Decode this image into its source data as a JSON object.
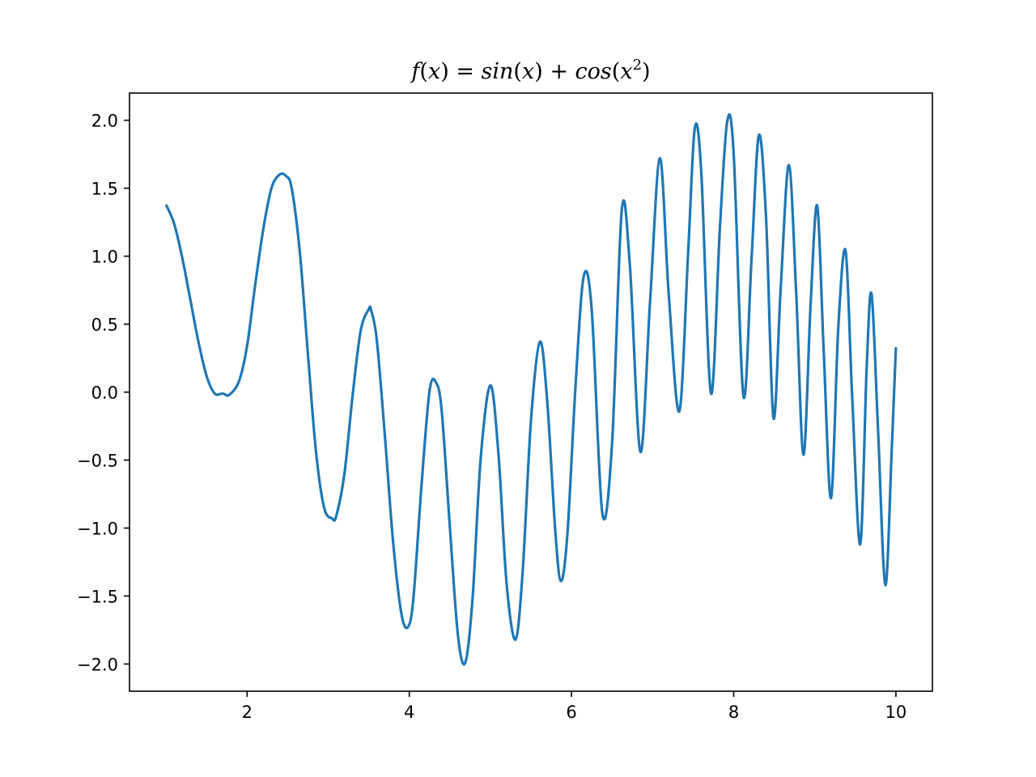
{
  "chart_data": {
    "type": "line",
    "title": "f(x) = sin(x) + cos(x²)",
    "title_parts": {
      "fname": "f",
      "lparen": "(",
      "var": "x",
      "rparen_eq": ") = ",
      "sin": "sin",
      "plus": " + ",
      "cos": "cos",
      "sq_close": ")",
      "exp": "2"
    },
    "xlabel": "",
    "ylabel": "",
    "xlim": [
      0.55,
      10.45
    ],
    "ylim": [
      -2.2,
      2.2
    ],
    "x_ticks": [
      2,
      4,
      6,
      8,
      10
    ],
    "x_tick_labels": [
      "2",
      "4",
      "6",
      "8",
      "10"
    ],
    "y_ticks": [
      -2.0,
      -1.5,
      -1.0,
      -0.5,
      0.0,
      0.5,
      1.0,
      1.5,
      2.0
    ],
    "y_tick_labels": [
      "−2.0",
      "−1.5",
      "−1.0",
      "−0.5",
      "0.0",
      "0.5",
      "1.0",
      "1.5",
      "2.0"
    ],
    "grid": false,
    "legend": false,
    "series": [
      {
        "color": "#1f77b4",
        "x": [
          1.0,
          1.1,
          1.2,
          1.3,
          1.4,
          1.5,
          1.6,
          1.7,
          1.78,
          1.9,
          2.0,
          2.1,
          2.2,
          2.3,
          2.4,
          2.48,
          2.55,
          2.65,
          2.75,
          2.85,
          2.95,
          3.05,
          3.1,
          3.2,
          3.3,
          3.4,
          3.5,
          3.53,
          3.6,
          3.7,
          3.8,
          3.9,
          3.98,
          4.05,
          4.15,
          4.25,
          4.33,
          4.4,
          4.5,
          4.6,
          4.69,
          4.78,
          4.88,
          5.0,
          5.1,
          5.2,
          5.31,
          5.4,
          5.5,
          5.61,
          5.7,
          5.8,
          5.87,
          5.95,
          6.05,
          6.15,
          6.25,
          6.38,
          6.5,
          6.62,
          6.72,
          6.85,
          6.97,
          7.09,
          7.2,
          7.33,
          7.44,
          7.52,
          7.6,
          7.72,
          7.83,
          7.92,
          8.0,
          8.12,
          8.22,
          8.31,
          8.4,
          8.49,
          8.58,
          8.68,
          8.77,
          8.86,
          8.95,
          9.03,
          9.11,
          9.2,
          9.29,
          9.38,
          9.46,
          9.56,
          9.64,
          9.7,
          9.78,
          9.87,
          9.95,
          10.0
        ],
        "y": [
          1.38,
          1.24,
          0.99,
          0.68,
          0.37,
          0.12,
          -0.01,
          -0.01,
          -0.02,
          0.08,
          0.34,
          0.79,
          1.2,
          1.5,
          1.6,
          1.59,
          1.5,
          1.03,
          0.28,
          -0.44,
          -0.85,
          -0.93,
          -0.91,
          -0.6,
          -0.03,
          0.45,
          0.61,
          0.6,
          0.38,
          -0.33,
          -1.1,
          -1.62,
          -1.73,
          -1.52,
          -0.69,
          0.01,
          0.07,
          -0.14,
          -0.99,
          -1.79,
          -1.99,
          -1.52,
          -0.49,
          0.05,
          -0.46,
          -1.41,
          -1.82,
          -1.3,
          -0.21,
          0.37,
          -0.06,
          -1.02,
          -1.39,
          -1.04,
          0.05,
          0.85,
          0.6,
          -0.89,
          -0.38,
          1.34,
          0.93,
          -0.44,
          0.68,
          1.72,
          0.71,
          -0.14,
          1.05,
          1.94,
          1.62,
          -0.01,
          1.21,
          1.99,
          1.75,
          -0.03,
          0.98,
          1.89,
          1.27,
          -0.19,
          0.77,
          1.67,
          0.74,
          -0.46,
          0.67,
          1.37,
          0.3,
          -0.78,
          0.48,
          1.04,
          -0.02,
          -1.12,
          0.19,
          0.72,
          -0.28,
          -1.42,
          -0.4,
          0.33
        ]
      }
    ]
  }
}
